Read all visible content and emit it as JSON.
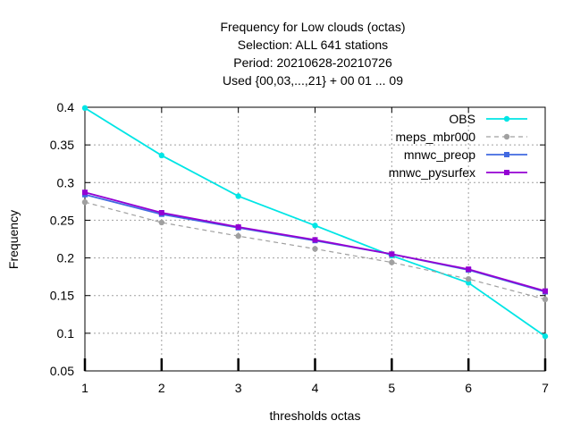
{
  "chart_data": {
    "type": "line",
    "title_lines": [
      "Frequency  for Low clouds (octas)",
      "Selection: ALL    641 stations",
      "Period: 20210628-20210726",
      "Used {00,03,...,21} + 00 01 ... 09"
    ],
    "xlabel": "thresholds octas",
    "ylabel": "Frequency",
    "x": [
      1,
      2,
      3,
      4,
      5,
      6,
      7
    ],
    "xticks": [
      "1",
      "2",
      "3",
      "4",
      "5",
      "6",
      "7"
    ],
    "yticks": [
      "0.05",
      "0.1",
      "0.15",
      "0.2",
      "0.25",
      "0.3",
      "0.35",
      "0.4"
    ],
    "xlim": [
      1,
      7
    ],
    "ylim": [
      0.05,
      0.4
    ],
    "grid": true,
    "legend_position": "top-right",
    "series": [
      {
        "name": "OBS",
        "color": "#00e5e5",
        "dashed": false,
        "marker": "circle",
        "values": [
          0.399,
          0.336,
          0.282,
          0.243,
          0.203,
          0.167,
          0.096
        ]
      },
      {
        "name": "meps_mbr000",
        "color": "#a0a0a0",
        "dashed": true,
        "marker": "circle",
        "values": [
          0.274,
          0.247,
          0.229,
          0.212,
          0.194,
          0.172,
          0.145
        ]
      },
      {
        "name": "mnwc_preop",
        "color": "#4169e1",
        "dashed": false,
        "marker": "square",
        "values": [
          0.284,
          0.258,
          0.24,
          0.223,
          0.205,
          0.184,
          0.155
        ]
      },
      {
        "name": "mnwc_pysurfex",
        "color": "#9400d3",
        "dashed": false,
        "marker": "square",
        "values": [
          0.287,
          0.26,
          0.241,
          0.224,
          0.205,
          0.185,
          0.156
        ]
      }
    ]
  }
}
